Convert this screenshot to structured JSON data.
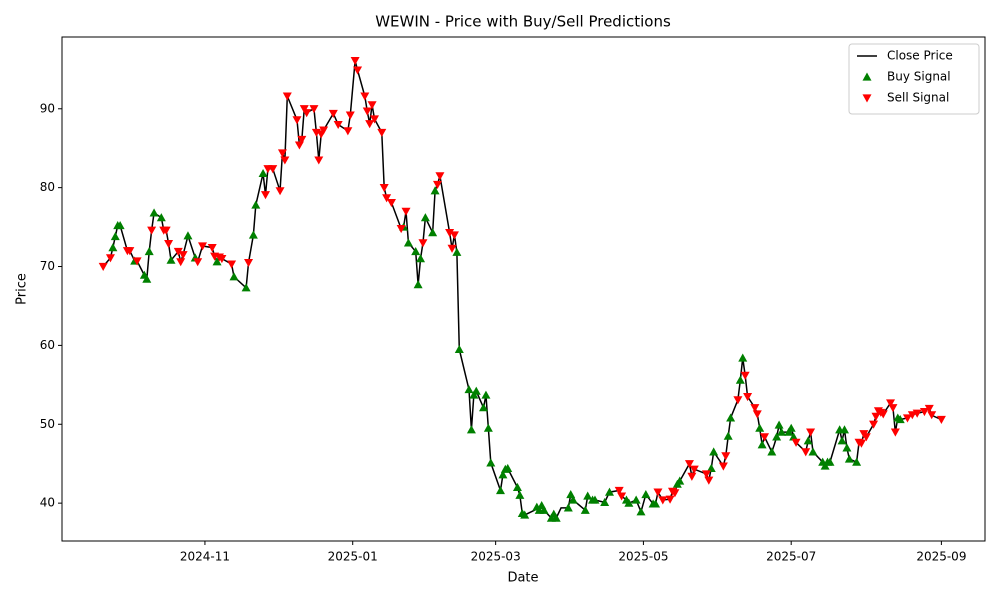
{
  "chart_data": {
    "type": "line",
    "title": "WEWIN - Price with Buy/Sell Predictions",
    "x_label": "Date",
    "y_label": "Price",
    "xlim": [
      "2024-09-03",
      "2025-09-19"
    ],
    "xticks": [
      {
        "value": "2024-11-01",
        "label": "2024-11"
      },
      {
        "value": "2025-01-01",
        "label": "2025-01"
      },
      {
        "value": "2025-03-01",
        "label": "2025-03"
      },
      {
        "value": "2025-05-01",
        "label": "2025-05"
      },
      {
        "value": "2025-07-01",
        "label": "2025-07"
      },
      {
        "value": "2025-09-01",
        "label": "2025-09"
      }
    ],
    "ylim": [
      35.2,
      99.1
    ],
    "yticks": [
      40,
      50,
      60,
      70,
      80,
      90
    ],
    "grid": false,
    "legend": "upper right",
    "series": [
      {
        "name": "Close Price",
        "type": "line",
        "color": "#000000",
        "x": [
          "2024-09-20",
          "2024-09-23",
          "2024-09-24",
          "2024-09-25",
          "2024-09-26",
          "2024-09-27",
          "2024-09-30",
          "2024-10-01",
          "2024-10-03",
          "2024-10-04",
          "2024-10-07",
          "2024-10-08",
          "2024-10-09",
          "2024-10-10",
          "2024-10-11",
          "2024-10-14",
          "2024-10-15",
          "2024-10-16",
          "2024-10-17",
          "2024-10-18",
          "2024-10-21",
          "2024-10-22",
          "2024-10-23",
          "2024-10-25",
          "2024-10-28",
          "2024-10-29",
          "2024-10-31",
          "2024-11-04",
          "2024-11-05",
          "2024-11-06",
          "2024-11-07",
          "2024-11-08",
          "2024-11-12",
          "2024-11-13",
          "2024-11-18",
          "2024-11-19",
          "2024-11-21",
          "2024-11-22",
          "2024-11-25",
          "2024-11-26",
          "2024-11-27",
          "2024-11-29",
          "2024-12-02",
          "2024-12-03",
          "2024-12-04",
          "2024-12-05",
          "2024-12-09",
          "2024-12-10",
          "2024-12-11",
          "2024-12-12",
          "2024-12-13",
          "2024-12-16",
          "2024-12-17",
          "2024-12-18",
          "2024-12-19",
          "2024-12-20",
          "2024-12-24",
          "2024-12-26",
          "2024-12-30",
          "2024-12-31",
          "2025-01-02",
          "2025-01-03",
          "2025-01-06",
          "2025-01-07",
          "2025-01-08",
          "2025-01-09",
          "2025-01-10",
          "2025-01-13",
          "2025-01-14",
          "2025-01-15",
          "2025-01-17",
          "2025-01-21",
          "2025-01-22",
          "2025-01-23",
          "2025-01-24",
          "2025-01-27",
          "2025-01-28",
          "2025-01-29",
          "2025-01-30",
          "2025-01-31",
          "2025-02-03",
          "2025-02-04",
          "2025-02-05",
          "2025-02-06",
          "2025-02-10",
          "2025-02-11",
          "2025-02-12",
          "2025-02-13",
          "2025-02-14",
          "2025-02-18",
          "2025-02-19",
          "2025-02-20",
          "2025-02-21",
          "2025-02-24",
          "2025-02-25",
          "2025-02-26",
          "2025-02-27",
          "2025-03-03",
          "2025-03-04",
          "2025-03-05",
          "2025-03-06",
          "2025-03-10",
          "2025-03-11",
          "2025-03-12",
          "2025-03-13",
          "2025-03-17",
          "2025-03-18",
          "2025-03-19",
          "2025-03-20",
          "2025-03-21",
          "2025-03-24",
          "2025-03-25",
          "2025-03-26",
          "2025-03-28",
          "2025-03-31",
          "2025-04-01",
          "2025-04-02",
          "2025-04-07",
          "2025-04-08",
          "2025-04-10",
          "2025-04-11",
          "2025-04-15",
          "2025-04-17",
          "2025-04-21",
          "2025-04-22",
          "2025-04-24",
          "2025-04-25",
          "2025-04-28",
          "2025-04-30",
          "2025-05-02",
          "2025-05-05",
          "2025-05-06",
          "2025-05-07",
          "2025-05-09",
          "2025-05-12",
          "2025-05-13",
          "2025-05-14",
          "2025-05-15",
          "2025-05-16",
          "2025-05-20",
          "2025-05-21",
          "2025-05-22",
          "2025-05-27",
          "2025-05-28",
          "2025-05-29",
          "2025-05-30",
          "2025-06-03",
          "2025-06-04",
          "2025-06-05",
          "2025-06-06",
          "2025-06-09",
          "2025-06-10",
          "2025-06-11",
          "2025-06-12",
          "2025-06-13",
          "2025-06-16",
          "2025-06-17",
          "2025-06-18",
          "2025-06-19",
          "2025-06-20",
          "2025-06-23",
          "2025-06-24",
          "2025-06-25",
          "2025-06-26",
          "2025-06-27",
          "2025-06-30",
          "2025-07-01",
          "2025-07-02",
          "2025-07-03",
          "2025-07-07",
          "2025-07-08",
          "2025-07-09",
          "2025-07-10",
          "2025-07-14",
          "2025-07-15",
          "2025-07-16",
          "2025-07-17",
          "2025-07-21",
          "2025-07-22",
          "2025-07-23",
          "2025-07-24",
          "2025-07-25",
          "2025-07-28",
          "2025-07-29",
          "2025-07-30",
          "2025-07-31",
          "2025-08-01",
          "2025-08-04",
          "2025-08-05",
          "2025-08-06",
          "2025-08-07",
          "2025-08-08",
          "2025-08-11",
          "2025-08-12",
          "2025-08-13",
          "2025-08-14",
          "2025-08-15",
          "2025-08-18",
          "2025-08-20",
          "2025-08-22",
          "2025-08-25",
          "2025-08-27",
          "2025-08-28",
          "2025-08-29",
          "2025-09-01"
        ],
        "values": [
          70.0,
          71.1,
          72.4,
          73.8,
          75.2,
          75.2,
          72.0,
          72.0,
          70.7,
          70.7,
          68.9,
          68.4,
          71.9,
          74.6,
          76.8,
          76.2,
          74.6,
          74.6,
          72.9,
          70.8,
          71.9,
          70.6,
          71.5,
          73.9,
          71.1,
          70.6,
          72.6,
          72.4,
          71.3,
          70.6,
          71.2,
          71.0,
          70.3,
          68.7,
          67.3,
          70.5,
          74.0,
          77.8,
          81.8,
          79.1,
          82.4,
          82.4,
          79.6,
          84.4,
          83.5,
          91.6,
          88.6,
          85.4,
          86.1,
          90.0,
          89.5,
          90.0,
          87.0,
          83.5,
          86.8,
          87.3,
          89.4,
          88.0,
          87.2,
          89.2,
          96.1,
          94.9,
          91.6,
          89.7,
          88.1,
          90.5,
          88.7,
          87.0,
          80.0,
          78.7,
          78.1,
          74.8,
          75.0,
          77.0,
          73.0,
          71.9,
          67.7,
          71.0,
          73.0,
          76.2,
          74.3,
          79.6,
          80.4,
          81.5,
          74.3,
          72.3,
          74.0,
          71.8,
          59.5,
          54.4,
          49.3,
          53.7,
          54.2,
          52.1,
          53.7,
          49.5,
          45.1,
          41.6,
          43.6,
          44.3,
          44.4,
          42.0,
          41.0,
          38.7,
          38.5,
          39.1,
          39.5,
          39.1,
          39.7,
          39.1,
          38.1,
          38.6,
          38.1,
          39.4,
          39.4,
          41.1,
          40.4,
          39.1,
          40.9,
          40.4,
          40.4,
          40.1,
          41.4,
          41.6,
          40.9,
          40.4,
          40.0,
          40.4,
          38.9,
          41.1,
          39.9,
          39.9,
          41.4,
          40.4,
          40.5,
          41.5,
          41.3,
          42.4,
          42.8,
          45.0,
          43.4,
          44.3,
          43.7,
          42.9,
          44.4,
          46.5,
          44.7,
          46.0,
          48.5,
          50.8,
          53.1,
          55.6,
          58.4,
          56.2,
          53.5,
          52.1,
          51.3,
          49.5,
          47.4,
          48.4,
          46.5,
          47.4,
          48.4,
          49.9,
          49.0,
          49.0,
          49.5,
          48.4,
          47.7,
          46.5,
          47.9,
          49.0,
          46.5,
          45.2,
          44.7,
          45.2,
          45.2,
          49.3,
          47.9,
          49.3,
          47.0,
          45.6,
          45.2,
          47.7,
          47.6,
          48.8,
          48.4,
          50.0,
          51.0,
          51.7,
          51.5,
          51.3,
          52.7,
          52.1,
          49.0,
          50.8,
          50.6,
          50.8,
          51.2,
          51.4,
          51.6,
          52.0,
          51.2,
          51.0,
          50.6
        ]
      },
      {
        "name": "Buy Signal",
        "type": "scatter",
        "marker": "triangle-up",
        "color": "#008000",
        "x": [
          "2024-09-24",
          "2024-09-25",
          "2024-09-26",
          "2024-09-27",
          "2024-10-03",
          "2024-10-07",
          "2024-10-08",
          "2024-10-09",
          "2024-10-11",
          "2024-10-14",
          "2024-10-18",
          "2024-10-25",
          "2024-10-28",
          "2024-11-06",
          "2024-11-13",
          "2024-11-18",
          "2024-11-21",
          "2024-11-22",
          "2024-11-25",
          "2025-01-22",
          "2025-01-24",
          "2025-01-27",
          "2025-01-28",
          "2025-01-29",
          "2025-01-31",
          "2025-02-03",
          "2025-02-04",
          "2025-02-13",
          "2025-02-14",
          "2025-02-18",
          "2025-02-19",
          "2025-02-20",
          "2025-02-21",
          "2025-02-24",
          "2025-02-25",
          "2025-02-26",
          "2025-02-27",
          "2025-03-03",
          "2025-03-04",
          "2025-03-05",
          "2025-03-06",
          "2025-03-10",
          "2025-03-11",
          "2025-03-12",
          "2025-03-13",
          "2025-03-18",
          "2025-03-19",
          "2025-03-20",
          "2025-03-21",
          "2025-03-24",
          "2025-03-25",
          "2025-03-26",
          "2025-03-31",
          "2025-04-01",
          "2025-04-02",
          "2025-04-07",
          "2025-04-08",
          "2025-04-10",
          "2025-04-11",
          "2025-04-15",
          "2025-04-17",
          "2025-04-24",
          "2025-04-25",
          "2025-04-28",
          "2025-04-30",
          "2025-05-02",
          "2025-05-05",
          "2025-05-06",
          "2025-05-15",
          "2025-05-16",
          "2025-05-29",
          "2025-05-30",
          "2025-06-05",
          "2025-06-06",
          "2025-06-10",
          "2025-06-11",
          "2025-06-18",
          "2025-06-19",
          "2025-06-23",
          "2025-06-25",
          "2025-06-26",
          "2025-06-27",
          "2025-06-30",
          "2025-07-01",
          "2025-07-02",
          "2025-07-08",
          "2025-07-10",
          "2025-07-14",
          "2025-07-15",
          "2025-07-16",
          "2025-07-17",
          "2025-07-21",
          "2025-07-22",
          "2025-07-23",
          "2025-07-24",
          "2025-07-25",
          "2025-07-28",
          "2025-08-14",
          "2025-08-15"
        ],
        "values": [
          72.4,
          73.8,
          75.2,
          75.2,
          70.7,
          68.9,
          68.4,
          71.9,
          76.8,
          76.2,
          70.8,
          73.9,
          71.1,
          70.6,
          68.7,
          67.3,
          74.0,
          77.8,
          81.8,
          75.0,
          73.0,
          71.9,
          67.7,
          71.0,
          76.2,
          74.3,
          79.6,
          71.8,
          59.5,
          54.4,
          49.3,
          53.7,
          54.2,
          52.1,
          53.7,
          49.5,
          45.1,
          41.6,
          43.6,
          44.3,
          44.4,
          42.0,
          41.0,
          38.7,
          38.5,
          39.5,
          39.1,
          39.7,
          39.1,
          38.1,
          38.6,
          38.1,
          39.4,
          41.1,
          40.4,
          39.1,
          40.9,
          40.4,
          40.4,
          40.1,
          41.4,
          40.4,
          40.0,
          40.4,
          38.9,
          41.1,
          39.9,
          39.9,
          42.4,
          42.8,
          44.4,
          46.5,
          48.5,
          50.8,
          55.6,
          58.4,
          49.5,
          47.4,
          46.5,
          48.4,
          49.9,
          49.0,
          49.0,
          49.5,
          48.4,
          47.9,
          46.5,
          45.2,
          44.7,
          45.2,
          45.2,
          49.3,
          47.9,
          49.3,
          47.0,
          45.6,
          45.2,
          50.8,
          50.6
        ]
      },
      {
        "name": "Sell Signal",
        "type": "scatter",
        "marker": "triangle-down",
        "color": "#ff0000",
        "x": [
          "2024-09-20",
          "2024-09-23",
          "2024-09-30",
          "2024-10-01",
          "2024-10-04",
          "2024-10-10",
          "2024-10-15",
          "2024-10-16",
          "2024-10-17",
          "2024-10-21",
          "2024-10-22",
          "2024-10-23",
          "2024-10-29",
          "2024-10-31",
          "2024-11-04",
          "2024-11-05",
          "2024-11-07",
          "2024-11-08",
          "2024-11-12",
          "2024-11-19",
          "2024-11-26",
          "2024-11-27",
          "2024-11-29",
          "2024-12-02",
          "2024-12-03",
          "2024-12-04",
          "2024-12-05",
          "2024-12-09",
          "2024-12-10",
          "2024-12-11",
          "2024-12-12",
          "2024-12-13",
          "2024-12-16",
          "2024-12-17",
          "2024-12-18",
          "2024-12-19",
          "2024-12-20",
          "2024-12-24",
          "2024-12-26",
          "2024-12-30",
          "2024-12-31",
          "2025-01-02",
          "2025-01-03",
          "2025-01-06",
          "2025-01-07",
          "2025-01-08",
          "2025-01-09",
          "2025-01-10",
          "2025-01-13",
          "2025-01-14",
          "2025-01-15",
          "2025-01-17",
          "2025-01-21",
          "2025-01-23",
          "2025-01-30",
          "2025-02-05",
          "2025-02-06",
          "2025-02-10",
          "2025-02-11",
          "2025-02-12",
          "2025-04-21",
          "2025-04-22",
          "2025-05-07",
          "2025-05-09",
          "2025-05-12",
          "2025-05-13",
          "2025-05-14",
          "2025-05-20",
          "2025-05-21",
          "2025-05-22",
          "2025-05-27",
          "2025-05-28",
          "2025-06-03",
          "2025-06-04",
          "2025-06-09",
          "2025-06-12",
          "2025-06-13",
          "2025-06-16",
          "2025-06-17",
          "2025-06-20",
          "2025-07-03",
          "2025-07-07",
          "2025-07-09",
          "2025-07-29",
          "2025-07-30",
          "2025-07-31",
          "2025-08-01",
          "2025-08-04",
          "2025-08-05",
          "2025-08-06",
          "2025-08-07",
          "2025-08-08",
          "2025-08-11",
          "2025-08-12",
          "2025-08-13",
          "2025-08-18",
          "2025-08-20",
          "2025-08-22",
          "2025-08-25",
          "2025-08-27",
          "2025-08-28",
          "2025-09-01"
        ],
        "values": [
          70.0,
          71.1,
          72.0,
          72.0,
          70.7,
          74.6,
          74.6,
          74.6,
          72.9,
          71.9,
          70.6,
          71.5,
          70.6,
          72.6,
          72.4,
          71.3,
          71.2,
          71.0,
          70.3,
          70.5,
          79.1,
          82.4,
          82.4,
          79.6,
          84.4,
          83.5,
          91.6,
          88.6,
          85.4,
          86.1,
          90.0,
          89.5,
          90.0,
          87.0,
          83.5,
          86.8,
          87.3,
          89.4,
          88.0,
          87.2,
          89.2,
          96.1,
          94.9,
          91.6,
          89.7,
          88.1,
          90.5,
          88.7,
          87.0,
          80.0,
          78.7,
          78.1,
          74.8,
          77.0,
          73.0,
          80.4,
          81.5,
          74.3,
          72.3,
          74.0,
          41.6,
          40.9,
          41.4,
          40.4,
          40.5,
          41.5,
          41.3,
          45.0,
          43.4,
          44.3,
          43.7,
          42.9,
          44.7,
          46.0,
          53.1,
          56.2,
          53.5,
          52.1,
          51.3,
          48.4,
          47.7,
          46.5,
          49.0,
          47.7,
          47.6,
          48.8,
          48.4,
          50.0,
          51.0,
          51.7,
          51.5,
          51.3,
          52.7,
          52.1,
          49.0,
          50.8,
          51.2,
          51.4,
          51.6,
          52.0,
          51.2,
          50.6
        ]
      }
    ]
  }
}
